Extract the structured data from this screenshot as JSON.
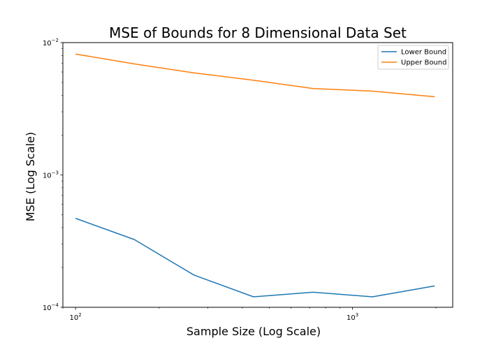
{
  "chart_data": {
    "type": "line",
    "title": "MSE of Bounds for 8 Dimensional Data Set",
    "xlabel": "Sample Size (Log Scale)",
    "ylabel": "MSE (Log Scale)",
    "xscale": "log",
    "yscale": "log",
    "xlim": [
      90,
      2300
    ],
    "ylim": [
      0.0001,
      0.01
    ],
    "x": [
      100,
      163,
      268,
      439,
      720,
      1180,
      1980
    ],
    "series": [
      {
        "name": "Lower Bound",
        "color": "#1f77b4",
        "values": [
          0.00047,
          0.000325,
          0.000175,
          0.00012,
          0.00013,
          0.00012,
          0.000145
        ]
      },
      {
        "name": "Upper Bound",
        "color": "#ff7f0e",
        "values": [
          0.0082,
          0.0069,
          0.0059,
          0.0052,
          0.0045,
          0.0043,
          0.0039
        ]
      }
    ],
    "xticks": [
      {
        "value": 100,
        "base": "10",
        "exp": "2"
      },
      {
        "value": 1000,
        "base": "10",
        "exp": "3"
      }
    ],
    "yticks": [
      {
        "value": 0.0001,
        "base": "10",
        "exp": "−4"
      },
      {
        "value": 0.001,
        "base": "10",
        "exp": "−3"
      },
      {
        "value": 0.01,
        "base": "10",
        "exp": "−2"
      }
    ],
    "legend": {
      "placement": "top-right"
    }
  }
}
